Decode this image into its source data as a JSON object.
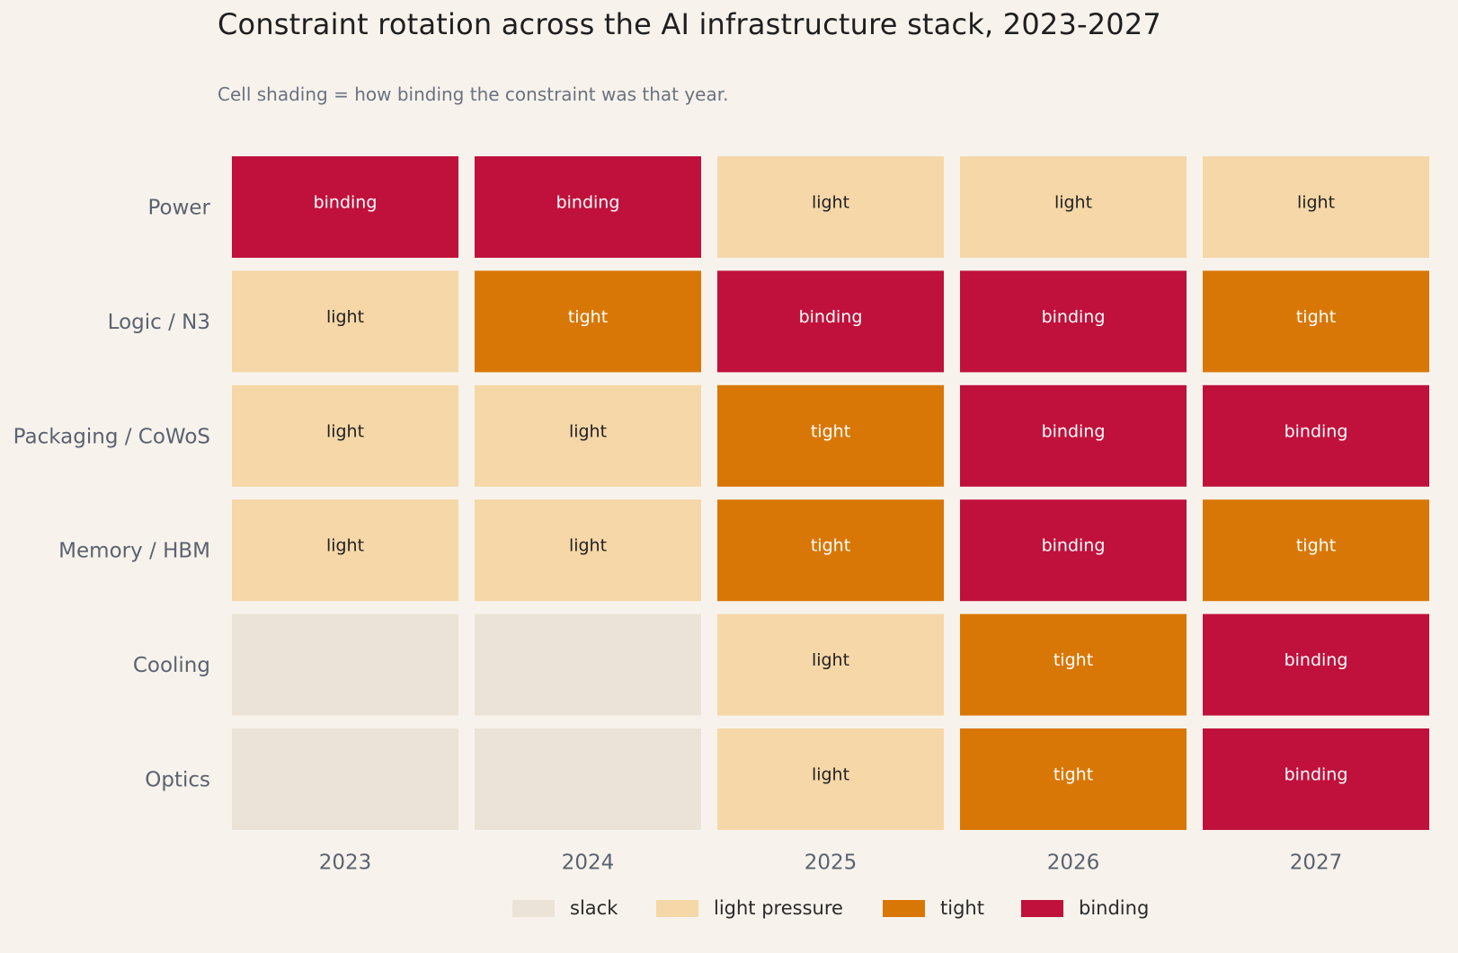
{
  "title": "Constraint rotation across the AI infrastructure stack, 2023-2027",
  "subtitle": "Cell shading = how binding the constraint was that year.",
  "colors": {
    "slack": "#ebe3d7",
    "light": "#f5d7a8",
    "tight": "#d97706",
    "binding": "#c0113c",
    "text_dark": "#222222",
    "text_light": "#ffffff"
  },
  "chart_data": {
    "type": "heatmap",
    "title": "Constraint rotation across the AI infrastructure stack, 2023-2027",
    "subtitle": "Cell shading = how binding the constraint was that year.",
    "x": [
      "2023",
      "2024",
      "2025",
      "2026",
      "2027"
    ],
    "y": [
      "Power",
      "Logic / N3",
      "Packaging / CoWoS",
      "Memory / HBM",
      "Cooling",
      "Optics"
    ],
    "levels": [
      "slack",
      "light",
      "tight",
      "binding"
    ],
    "values": [
      [
        "binding",
        "binding",
        "light",
        "light",
        "light"
      ],
      [
        "light",
        "tight",
        "binding",
        "binding",
        "tight"
      ],
      [
        "light",
        "light",
        "tight",
        "binding",
        "binding"
      ],
      [
        "light",
        "light",
        "tight",
        "binding",
        "tight"
      ],
      [
        "slack",
        "slack",
        "light",
        "tight",
        "binding"
      ],
      [
        "slack",
        "slack",
        "light",
        "tight",
        "binding"
      ]
    ],
    "cell_labels": [
      [
        "binding",
        "binding",
        "light",
        "light",
        "light"
      ],
      [
        "light",
        "tight",
        "binding",
        "binding",
        "tight"
      ],
      [
        "light",
        "light",
        "tight",
        "binding",
        "binding"
      ],
      [
        "light",
        "light",
        "tight",
        "binding",
        "tight"
      ],
      [
        "",
        "",
        "light",
        "tight",
        "binding"
      ],
      [
        "",
        "",
        "light",
        "tight",
        "binding"
      ]
    ],
    "legend": [
      {
        "level": "slack",
        "label": "slack"
      },
      {
        "level": "light",
        "label": "light pressure"
      },
      {
        "level": "tight",
        "label": "tight"
      },
      {
        "level": "binding",
        "label": "binding"
      }
    ],
    "legend_position": "bottom-center",
    "grid": false
  }
}
